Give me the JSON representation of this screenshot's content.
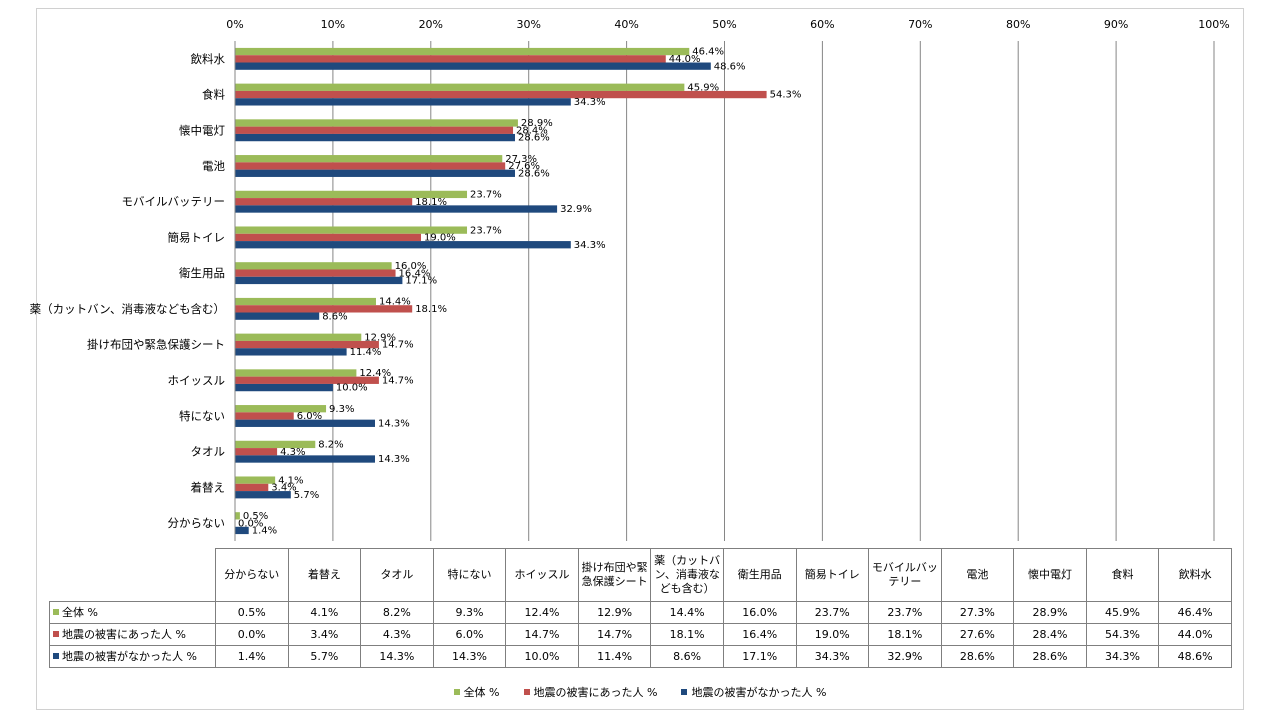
{
  "colors": {
    "series1": "#9bbb59",
    "series2": "#c0504d",
    "series3": "#1f497d",
    "grid": "#868686"
  },
  "chart_data": {
    "type": "bar",
    "orientation": "horizontal",
    "categories": [
      "飲料水",
      "食料",
      "懐中電灯",
      "電池",
      "モバイルバッテリー",
      "簡易トイレ",
      "衛生用品",
      "薬（カットバン、消毒液なども含む）",
      "掛け布団や緊急保護シート",
      "ホイッスル",
      "特にない",
      "タオル",
      "着替え",
      "分からない"
    ],
    "series": [
      {
        "name": "全体 %",
        "values": [
          46.4,
          45.9,
          28.9,
          27.3,
          23.7,
          23.7,
          16.0,
          14.4,
          12.9,
          12.4,
          9.3,
          8.2,
          4.1,
          0.5
        ]
      },
      {
        "name": "地震の被害にあった人 %",
        "values": [
          44.0,
          54.3,
          28.4,
          27.6,
          18.1,
          19.0,
          16.4,
          18.1,
          14.7,
          14.7,
          6.0,
          4.3,
          3.4,
          0.0
        ]
      },
      {
        "name": "地震の被害がなかった人 %",
        "values": [
          48.6,
          34.3,
          28.6,
          28.6,
          32.9,
          34.3,
          17.1,
          8.6,
          11.4,
          10.0,
          14.3,
          14.3,
          5.7,
          1.4
        ]
      }
    ],
    "xlim": [
      0,
      100
    ],
    "xticks": [
      "0%",
      "10%",
      "20%",
      "30%",
      "40%",
      "50%",
      "60%",
      "70%",
      "80%",
      "90%",
      "100%"
    ],
    "data_labels": [
      [
        "46.4%",
        "45.9%",
        "28.9%",
        "27.3%",
        "23.7%",
        "23.7%",
        "16.0%",
        "14.4%",
        "12.9%",
        "12.4%",
        "9.3%",
        "8.2%",
        "4.1%",
        "0.5%"
      ],
      [
        "44.0%",
        "54.3%",
        "28.4%",
        "27.6%",
        "18.1%",
        "19.0%",
        "16.4%",
        "18.1%",
        "14.7%",
        "14.7%",
        "6.0%",
        "4.3%",
        "3.4%",
        "0.0%"
      ],
      [
        "48.6%",
        "34.3%",
        "28.6%",
        "28.6%",
        "32.9%",
        "34.3%",
        "17.1%",
        "8.6%",
        "11.4%",
        "10.0%",
        "14.3%",
        "14.3%",
        "5.7%",
        "1.4%"
      ]
    ],
    "grid": true,
    "legend": "bottom"
  },
  "table": {
    "columns": [
      "分からない",
      "着替え",
      "タオル",
      "特にない",
      "ホイッスル",
      "掛け布団や緊急保護シート",
      "薬（カットバン、消毒液なども含む）",
      "衛生用品",
      "簡易トイレ",
      "モバイルバッテリー",
      "電池",
      "懐中電灯",
      "食料",
      "飲料水"
    ],
    "rows": [
      {
        "name": "全体 %",
        "values": [
          "0.5%",
          "4.1%",
          "8.2%",
          "9.3%",
          "12.4%",
          "12.9%",
          "14.4%",
          "16.0%",
          "23.7%",
          "23.7%",
          "27.3%",
          "28.9%",
          "45.9%",
          "46.4%"
        ]
      },
      {
        "name": "地震の被害にあった人 %",
        "values": [
          "0.0%",
          "3.4%",
          "4.3%",
          "6.0%",
          "14.7%",
          "14.7%",
          "18.1%",
          "16.4%",
          "19.0%",
          "18.1%",
          "27.6%",
          "28.4%",
          "54.3%",
          "44.0%"
        ]
      },
      {
        "name": "地震の被害がなかった人 %",
        "values": [
          "1.4%",
          "5.7%",
          "14.3%",
          "14.3%",
          "10.0%",
          "11.4%",
          "8.6%",
          "17.1%",
          "34.3%",
          "32.9%",
          "28.6%",
          "28.6%",
          "34.3%",
          "48.6%"
        ]
      }
    ]
  },
  "legend": {
    "items": [
      "全体 %",
      "地震の被害にあった人 %",
      "地震の被害がなかった人 %"
    ]
  }
}
